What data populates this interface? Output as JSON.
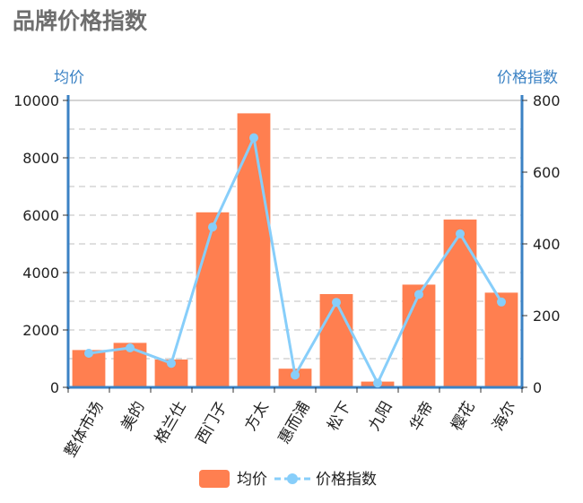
{
  "page": {
    "title": "品牌价格指数"
  },
  "colors": {
    "bar": "#ff7f50",
    "line": "#87cefa",
    "axis": "#3b82c4",
    "grid": "#cccccc"
  },
  "chart_data": {
    "type": "bar",
    "categories": [
      "整体市场",
      "美的",
      "格兰仕",
      "西门子",
      "方太",
      "惠而浦",
      "松下",
      "九阳",
      "华帝",
      "樱花",
      "海尔"
    ],
    "series": [
      {
        "name": "均价",
        "type": "bar",
        "axis": "left",
        "values": [
          1300,
          1550,
          970,
          6100,
          9550,
          650,
          3250,
          200,
          3580,
          5850,
          3300
        ]
      },
      {
        "name": "价格指数",
        "type": "line",
        "axis": "right",
        "values": [
          95,
          110,
          67,
          447,
          696,
          34,
          237,
          12,
          259,
          428,
          238
        ]
      }
    ],
    "y_left": {
      "label": "均价",
      "min": 0,
      "max": 10000,
      "ticks": [
        "0",
        "2000",
        "4000",
        "6000",
        "8000",
        "10000"
      ]
    },
    "y_right": {
      "label": "价格指数",
      "min": 0,
      "max": 800,
      "ticks": [
        "0",
        "200",
        "400",
        "600",
        "800"
      ]
    },
    "legend": {
      "position": "bottom",
      "items": [
        "均价",
        "价格指数"
      ]
    },
    "grid": true
  }
}
